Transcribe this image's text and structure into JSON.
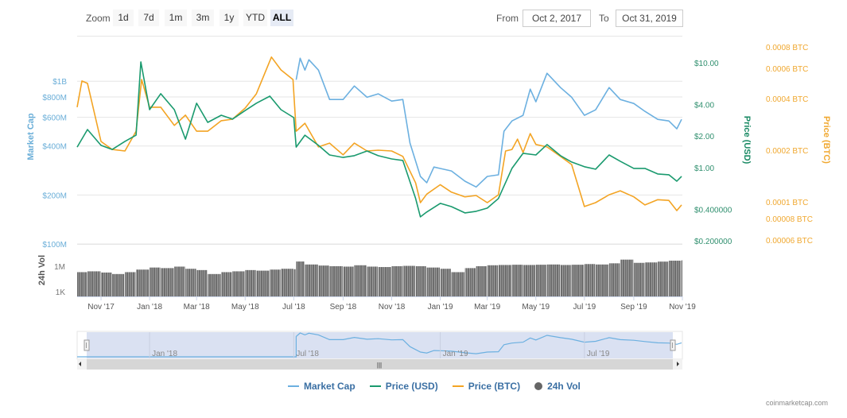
{
  "toolbar": {
    "zoom_label": "Zoom",
    "zoom_buttons": [
      "1d",
      "7d",
      "1m",
      "3m",
      "1y",
      "YTD",
      "ALL"
    ],
    "active_zoom": "ALL",
    "from_label": "From",
    "from_value": "Oct 2, 2017",
    "to_label": "To",
    "to_value": "Oct 31, 2019"
  },
  "legend": {
    "market_cap": "Market Cap",
    "price_usd": "Price (USD)",
    "price_btc": "Price (BTC)",
    "volume": "24h Vol"
  },
  "credit": "coinmarketcap.com",
  "colors": {
    "market_cap": "#6cb0e0",
    "price_usd": "#1a9a6e",
    "price_btc": "#f3a424",
    "volume": "#6b6b6b",
    "navigator_fill": "#d3dcf0"
  },
  "chart_data": {
    "type": "line",
    "xlim": [
      "2017-10-02",
      "2019-11-01"
    ],
    "x_ticks": [
      {
        "date": "2017-11-01",
        "label": "Nov '17"
      },
      {
        "date": "2018-01-01",
        "label": "Jan '18"
      },
      {
        "date": "2018-03-01",
        "label": "Mar '18"
      },
      {
        "date": "2018-05-01",
        "label": "May '18"
      },
      {
        "date": "2018-07-01",
        "label": "Jul '18"
      },
      {
        "date": "2018-09-01",
        "label": "Sep '18"
      },
      {
        "date": "2018-11-01",
        "label": "Nov '18"
      },
      {
        "date": "2019-01-01",
        "label": "Jan '19"
      },
      {
        "date": "2019-03-01",
        "label": "Mar '19"
      },
      {
        "date": "2019-05-01",
        "label": "May '19"
      },
      {
        "date": "2019-07-01",
        "label": "Jul '19"
      },
      {
        "date": "2019-09-01",
        "label": "Sep '19"
      },
      {
        "date": "2019-11-01",
        "label": "Nov '19"
      }
    ],
    "grid": true,
    "legend_position": "bottom",
    "axes": {
      "market_cap": {
        "label": "Market Cap",
        "scale": "log",
        "ylim": [
          100000000.0,
          1700000000.0
        ],
        "ticks": [
          {
            "v": 1000000000.0,
            "label": "$1B"
          },
          {
            "v": 800000000.0,
            "label": "$800M"
          },
          {
            "v": 600000000.0,
            "label": "$600M"
          },
          {
            "v": 400000000.0,
            "label": "$400M"
          },
          {
            "v": 200000000.0,
            "label": "$200M"
          },
          {
            "v": 100000000.0,
            "label": "$100M"
          }
        ]
      },
      "price_usd": {
        "label": "Price (USD)",
        "scale": "log",
        "ylim": [
          0.187,
          15.2
        ],
        "ticks": [
          {
            "v": 10,
            "label": "$10.00"
          },
          {
            "v": 4,
            "label": "$4.00"
          },
          {
            "v": 2,
            "label": "$2.00"
          },
          {
            "v": 1,
            "label": "$1.00"
          },
          {
            "v": 0.4,
            "label": "$0.400000"
          },
          {
            "v": 0.2,
            "label": "$0.200000"
          }
        ]
      },
      "price_btc": {
        "label": "Price (BTC)",
        "scale": "log",
        "ylim": [
          5.69e-05,
          0.000834
        ],
        "ticks": [
          {
            "v": 0.0008,
            "label": "0.0008 BTC"
          },
          {
            "v": 0.0006,
            "label": "0.0006 BTC"
          },
          {
            "v": 0.0004,
            "label": "0.0004 BTC"
          },
          {
            "v": 0.0002,
            "label": "0.0002 BTC"
          },
          {
            "v": 0.0001,
            "label": "0.0001 BTC"
          },
          {
            "v": 8e-05,
            "label": "0.00008 BTC"
          },
          {
            "v": 6e-05,
            "label": "0.00006 BTC"
          }
        ]
      },
      "volume": {
        "label": "24h Vol",
        "scale": "log",
        "ylim": [
          275,
          420000000.0
        ],
        "ticks": [
          {
            "v": 1000000.0,
            "label": "1M"
          },
          {
            "v": 1000.0,
            "label": "1K"
          }
        ]
      }
    },
    "navigator_ticks": [
      {
        "date": "2018-01-01",
        "label": "Jan '18"
      },
      {
        "date": "2018-07-01",
        "label": "Jul '18"
      },
      {
        "date": "2019-01-01",
        "label": "Jan '19"
      },
      {
        "date": "2019-07-01",
        "label": "Jul '19"
      }
    ],
    "series": [
      {
        "name": "Market Cap",
        "key": "market_cap",
        "points": [
          [
            "2018-07-04",
            1020000000.0
          ],
          [
            "2018-07-09",
            1384000000.0
          ],
          [
            "2018-07-15",
            1170000000.0
          ],
          [
            "2018-07-20",
            1354000000.0
          ],
          [
            "2018-08-01",
            1170000000.0
          ],
          [
            "2018-08-15",
            772000000.0
          ],
          [
            "2018-09-01",
            772000000.0
          ],
          [
            "2018-09-15",
            935000000.0
          ],
          [
            "2018-10-01",
            797000000.0
          ],
          [
            "2018-10-15",
            836000000.0
          ],
          [
            "2018-11-01",
            755000000.0
          ],
          [
            "2018-11-15",
            772000000.0
          ],
          [
            "2018-11-24",
            417000000.0
          ],
          [
            "2018-12-07",
            260000000.0
          ],
          [
            "2018-12-15",
            238000000.0
          ],
          [
            "2018-12-24",
            297000000.0
          ],
          [
            "2019-01-01",
            291000000.0
          ],
          [
            "2019-01-15",
            281000000.0
          ],
          [
            "2019-02-01",
            243000000.0
          ],
          [
            "2019-02-15",
            224000000.0
          ],
          [
            "2019-03-01",
            260000000.0
          ],
          [
            "2019-03-15",
            266000000.0
          ],
          [
            "2019-03-22",
            493000000.0
          ],
          [
            "2019-04-01",
            570000000.0
          ],
          [
            "2019-04-15",
            617000000.0
          ],
          [
            "2019-04-24",
            894000000.0
          ],
          [
            "2019-05-01",
            747000000.0
          ],
          [
            "2019-05-15",
            1119000000.0
          ],
          [
            "2019-06-01",
            914000000.0
          ],
          [
            "2019-06-15",
            797000000.0
          ],
          [
            "2019-07-01",
            617000000.0
          ],
          [
            "2019-07-15",
            667000000.0
          ],
          [
            "2019-08-01",
            914000000.0
          ],
          [
            "2019-08-15",
            772000000.0
          ],
          [
            "2019-09-01",
            730000000.0
          ],
          [
            "2019-09-15",
            653000000.0
          ],
          [
            "2019-10-01",
            583000000.0
          ],
          [
            "2019-10-15",
            570000000.0
          ],
          [
            "2019-10-25",
            510000000.0
          ],
          [
            "2019-10-31",
            583000000.0
          ]
        ]
      },
      {
        "name": "Price (USD)",
        "key": "price_usd",
        "points": [
          [
            "2017-10-02",
            1.57
          ],
          [
            "2017-10-15",
            2.31
          ],
          [
            "2017-11-01",
            1.63
          ],
          [
            "2017-11-15",
            1.49
          ],
          [
            "2017-12-01",
            1.78
          ],
          [
            "2017-12-15",
            2.04
          ],
          [
            "2017-12-21",
            10.2
          ],
          [
            "2018-01-01",
            3.57
          ],
          [
            "2018-01-15",
            5.07
          ],
          [
            "2018-02-01",
            3.57
          ],
          [
            "2018-02-15",
            1.87
          ],
          [
            "2018-03-01",
            4.11
          ],
          [
            "2018-03-15",
            2.7
          ],
          [
            "2018-04-01",
            3.16
          ],
          [
            "2018-04-15",
            2.9
          ],
          [
            "2018-05-01",
            3.5
          ],
          [
            "2018-05-15",
            4.11
          ],
          [
            "2018-06-01",
            4.8
          ],
          [
            "2018-06-15",
            3.57
          ],
          [
            "2018-07-01",
            3.0
          ],
          [
            "2018-07-04",
            1.57
          ],
          [
            "2018-07-15",
            2.04
          ],
          [
            "2018-08-01",
            1.63
          ],
          [
            "2018-08-15",
            1.32
          ],
          [
            "2018-09-01",
            1.25
          ],
          [
            "2018-09-15",
            1.3
          ],
          [
            "2018-10-01",
            1.44
          ],
          [
            "2018-10-15",
            1.3
          ],
          [
            "2018-11-01",
            1.21
          ],
          [
            "2018-11-15",
            1.17
          ],
          [
            "2018-12-01",
            0.507
          ],
          [
            "2018-12-07",
            0.339
          ],
          [
            "2018-12-15",
            0.377
          ],
          [
            "2019-01-01",
            0.456
          ],
          [
            "2019-01-15",
            0.425
          ],
          [
            "2019-02-01",
            0.37
          ],
          [
            "2019-02-15",
            0.383
          ],
          [
            "2019-03-01",
            0.411
          ],
          [
            "2019-03-15",
            0.507
          ],
          [
            "2019-04-01",
            0.983
          ],
          [
            "2019-04-15",
            1.37
          ],
          [
            "2019-05-01",
            1.32
          ],
          [
            "2019-05-15",
            1.66
          ],
          [
            "2019-06-01",
            1.3
          ],
          [
            "2019-06-15",
            1.13
          ],
          [
            "2019-07-01",
            1.02
          ],
          [
            "2019-07-15",
            0.966
          ],
          [
            "2019-08-01",
            1.32
          ],
          [
            "2019-08-15",
            1.15
          ],
          [
            "2019-09-01",
            0.983
          ],
          [
            "2019-09-15",
            0.983
          ],
          [
            "2019-10-01",
            0.87
          ],
          [
            "2019-10-15",
            0.855
          ],
          [
            "2019-10-25",
            0.743
          ],
          [
            "2019-10-31",
            0.826
          ]
        ]
      },
      {
        "name": "Price (BTC)",
        "key": "price_btc",
        "points": [
          [
            "2017-10-02",
            0.000356
          ],
          [
            "2017-10-08",
            0.000506
          ],
          [
            "2017-10-15",
            0.00049
          ],
          [
            "2017-11-01",
            0.000225
          ],
          [
            "2017-11-15",
            0.000202
          ],
          [
            "2017-12-01",
            0.000198
          ],
          [
            "2017-12-15",
            0.000258
          ],
          [
            "2017-12-22",
            0.000516
          ],
          [
            "2018-01-01",
            0.000356
          ],
          [
            "2018-01-15",
            0.000356
          ],
          [
            "2018-02-01",
            0.000279
          ],
          [
            "2018-02-15",
            0.00032
          ],
          [
            "2018-03-01",
            0.000258
          ],
          [
            "2018-03-15",
            0.000258
          ],
          [
            "2018-04-01",
            0.000297
          ],
          [
            "2018-04-15",
            0.000303
          ],
          [
            "2018-05-01",
            0.000352
          ],
          [
            "2018-05-15",
            0.000426
          ],
          [
            "2018-06-03",
            0.000697
          ],
          [
            "2018-06-15",
            0.000587
          ],
          [
            "2018-06-30",
            0.000516
          ],
          [
            "2018-07-04",
            0.000258
          ],
          [
            "2018-07-15",
            0.000287
          ],
          [
            "2018-08-01",
            0.000209
          ],
          [
            "2018-08-15",
            0.00022
          ],
          [
            "2018-09-01",
            0.000188
          ],
          [
            "2018-09-15",
            0.00022
          ],
          [
            "2018-10-01",
            0.000198
          ],
          [
            "2018-10-15",
            0.0002
          ],
          [
            "2018-11-01",
            0.000198
          ],
          [
            "2018-11-15",
            0.000184
          ],
          [
            "2018-12-01",
            0.000129
          ],
          [
            "2018-12-07",
            9.9e-05
          ],
          [
            "2018-12-15",
            0.000111
          ],
          [
            "2019-01-01",
            0.000126
          ],
          [
            "2019-01-15",
            0.000114
          ],
          [
            "2019-02-01",
            0.000107
          ],
          [
            "2019-02-15",
            0.000109
          ],
          [
            "2019-03-01",
            9.9e-05
          ],
          [
            "2019-03-15",
            0.00011
          ],
          [
            "2019-03-24",
            0.000198
          ],
          [
            "2019-04-01",
            0.000202
          ],
          [
            "2019-04-08",
            0.000232
          ],
          [
            "2019-04-15",
            0.000194
          ],
          [
            "2019-04-24",
            0.00025
          ],
          [
            "2019-05-01",
            0.000216
          ],
          [
            "2019-05-15",
            0.000209
          ],
          [
            "2019-06-01",
            0.000184
          ],
          [
            "2019-06-15",
            0.000165
          ],
          [
            "2019-07-01",
            9.4e-05
          ],
          [
            "2019-07-15",
            9.9e-05
          ],
          [
            "2019-08-01",
            0.00011
          ],
          [
            "2019-08-15",
            0.000116
          ],
          [
            "2019-09-01",
            0.000107
          ],
          [
            "2019-09-15",
            9.6e-05
          ],
          [
            "2019-10-01",
            0.000103
          ],
          [
            "2019-10-15",
            0.000102
          ],
          [
            "2019-10-25",
            8.9e-05
          ],
          [
            "2019-10-31",
            9.6e-05
          ]
        ]
      },
      {
        "name": "24h Vol",
        "key": "volume",
        "type": "bar",
        "points": [
          [
            "2017-10-02",
            200000.0
          ],
          [
            "2017-10-15",
            250000.0
          ],
          [
            "2017-11-01",
            180000.0
          ],
          [
            "2017-11-15",
            120000.0
          ],
          [
            "2017-12-01",
            200000.0
          ],
          [
            "2017-12-15",
            400000.0
          ],
          [
            "2018-01-01",
            700000.0
          ],
          [
            "2018-01-15",
            600000.0
          ],
          [
            "2018-02-01",
            900000.0
          ],
          [
            "2018-02-15",
            500000.0
          ],
          [
            "2018-03-01",
            350000.0
          ],
          [
            "2018-03-15",
            120000.0
          ],
          [
            "2018-04-01",
            200000.0
          ],
          [
            "2018-04-15",
            250000.0
          ],
          [
            "2018-05-01",
            350000.0
          ],
          [
            "2018-05-15",
            300000.0
          ],
          [
            "2018-06-01",
            400000.0
          ],
          [
            "2018-06-15",
            500000.0
          ],
          [
            "2018-07-01",
            450000.0
          ],
          [
            "2018-07-04",
            3600000.0
          ],
          [
            "2018-07-15",
            1600000.0
          ],
          [
            "2018-08-01",
            1200000.0
          ],
          [
            "2018-08-15",
            1000000.0
          ],
          [
            "2018-09-01",
            900000.0
          ],
          [
            "2018-09-15",
            1300000.0
          ],
          [
            "2018-10-01",
            900000.0
          ],
          [
            "2018-10-15",
            800000.0
          ],
          [
            "2018-11-01",
            1000000.0
          ],
          [
            "2018-11-15",
            1100000.0
          ],
          [
            "2018-12-01",
            1000000.0
          ],
          [
            "2018-12-15",
            700000.0
          ],
          [
            "2019-01-01",
            500000.0
          ],
          [
            "2019-01-15",
            200000.0
          ],
          [
            "2019-02-01",
            600000.0
          ],
          [
            "2019-02-15",
            1000000.0
          ],
          [
            "2019-03-01",
            1300000.0
          ],
          [
            "2019-03-15",
            1400000.0
          ],
          [
            "2019-04-01",
            1500000.0
          ],
          [
            "2019-04-15",
            1400000.0
          ],
          [
            "2019-05-01",
            1500000.0
          ],
          [
            "2019-05-15",
            1600000.0
          ],
          [
            "2019-06-01",
            1400000.0
          ],
          [
            "2019-06-15",
            1500000.0
          ],
          [
            "2019-07-01",
            1800000.0
          ],
          [
            "2019-07-15",
            1600000.0
          ],
          [
            "2019-08-01",
            2200000.0
          ],
          [
            "2019-08-15",
            6000000.0
          ],
          [
            "2019-09-01",
            2500000.0
          ],
          [
            "2019-09-15",
            2800000.0
          ],
          [
            "2019-10-01",
            3500000.0
          ],
          [
            "2019-10-15",
            4500000.0
          ],
          [
            "2019-10-31",
            5000000.0
          ]
        ]
      }
    ]
  }
}
